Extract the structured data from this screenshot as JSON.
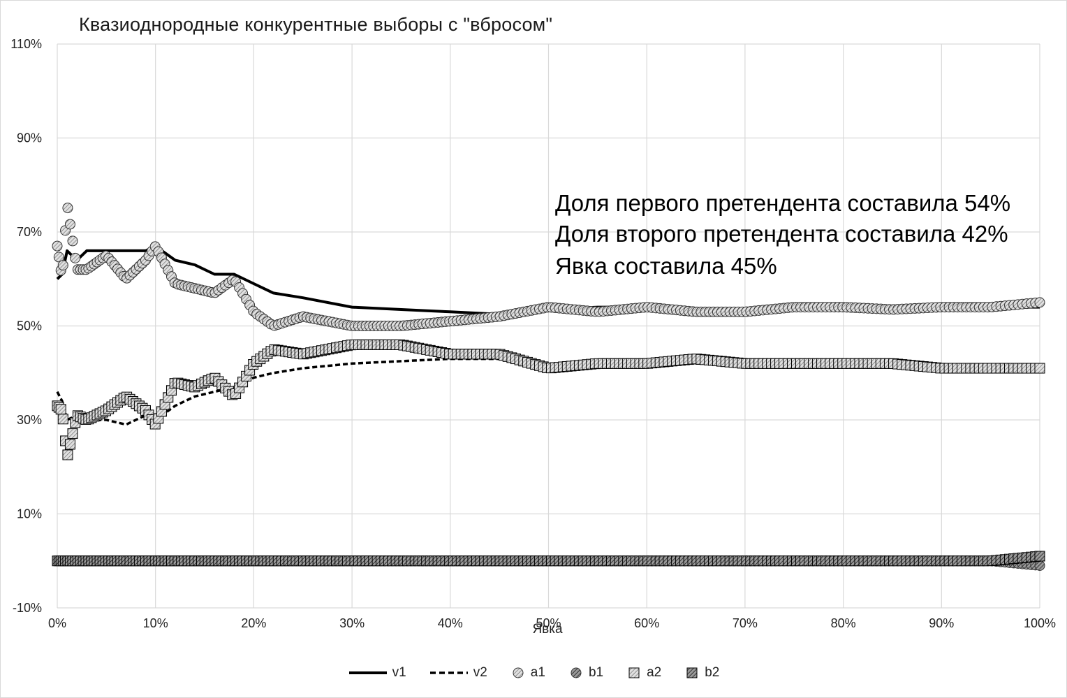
{
  "chart_data": {
    "type": "line",
    "title": "Квазиоднородные  конкурентные выборы с \"вбросом\"",
    "xlabel": "Явка",
    "ylabel": "",
    "xlim": [
      0,
      1
    ],
    "ylim": [
      -0.1,
      1.1
    ],
    "x_ticks": [
      "0%",
      "10%",
      "20%",
      "30%",
      "40%",
      "50%",
      "60%",
      "70%",
      "80%",
      "90%",
      "100%"
    ],
    "y_ticks": [
      "-10%",
      "10%",
      "30%",
      "50%",
      "70%",
      "90%",
      "110%"
    ],
    "grid": "vertical-and-horizontal",
    "legend_position": "bottom",
    "annotations": [
      "Доля первого претендента составила 54%",
      "Доля второго претендента составила 42%",
      "Явка составила 45%"
    ],
    "x": [
      0.0,
      0.005,
      0.01,
      0.02,
      0.03,
      0.05,
      0.07,
      0.09,
      0.1,
      0.12,
      0.14,
      0.16,
      0.18,
      0.2,
      0.22,
      0.25,
      0.3,
      0.35,
      0.4,
      0.45,
      0.5,
      0.55,
      0.6,
      0.65,
      0.7,
      0.75,
      0.8,
      0.85,
      0.9,
      0.95,
      1.0
    ],
    "series": [
      {
        "name": "v1",
        "style": "solid",
        "values": [
          0.6,
          0.61,
          0.66,
          0.64,
          0.66,
          0.66,
          0.66,
          0.66,
          0.67,
          0.64,
          0.63,
          0.61,
          0.61,
          0.59,
          0.57,
          0.56,
          0.54,
          0.535,
          0.53,
          0.525,
          0.535,
          0.54,
          0.54,
          0.535,
          0.535,
          0.535,
          0.54,
          0.54,
          0.54,
          0.54,
          0.54
        ]
      },
      {
        "name": "v2",
        "style": "dashed",
        "values": [
          0.36,
          0.34,
          0.3,
          0.31,
          0.3,
          0.3,
          0.29,
          0.31,
          0.3,
          0.33,
          0.35,
          0.36,
          0.37,
          0.39,
          0.4,
          0.41,
          0.42,
          0.425,
          0.43,
          0.43,
          0.42,
          0.42,
          0.42,
          0.42,
          0.42,
          0.42,
          0.42,
          0.42,
          0.415,
          0.415,
          0.415
        ]
      },
      {
        "name": "a1",
        "style": "marker-circle-hatched-light",
        "values": [
          0.67,
          0.6,
          0.76,
          0.62,
          0.62,
          0.65,
          0.6,
          0.64,
          0.67,
          0.59,
          0.58,
          0.57,
          0.6,
          0.53,
          0.5,
          0.52,
          0.5,
          0.5,
          0.51,
          0.52,
          0.54,
          0.53,
          0.54,
          0.53,
          0.53,
          0.54,
          0.54,
          0.535,
          0.54,
          0.54,
          0.55
        ]
      },
      {
        "name": "b1",
        "style": "marker-circle-hatched-dark",
        "values": [
          0.0,
          0.0,
          0.0,
          0.0,
          0.0,
          0.0,
          0.0,
          0.0,
          0.0,
          0.0,
          0.0,
          0.0,
          0.0,
          0.0,
          0.0,
          0.0,
          0.0,
          0.0,
          0.0,
          0.0,
          0.0,
          0.0,
          0.0,
          0.0,
          0.0,
          0.0,
          0.0,
          0.0,
          0.0,
          0.0,
          -0.01
        ]
      },
      {
        "name": "a2",
        "style": "marker-square-hatched-light",
        "values": [
          0.33,
          0.32,
          0.22,
          0.31,
          0.3,
          0.32,
          0.35,
          0.32,
          0.29,
          0.38,
          0.37,
          0.39,
          0.35,
          0.42,
          0.45,
          0.44,
          0.46,
          0.46,
          0.44,
          0.44,
          0.41,
          0.42,
          0.42,
          0.43,
          0.42,
          0.42,
          0.42,
          0.42,
          0.41,
          0.41,
          0.41
        ]
      },
      {
        "name": "b2",
        "style": "marker-square-hatched-dark",
        "values": [
          0.0,
          0.0,
          0.0,
          0.0,
          0.0,
          0.0,
          0.0,
          0.0,
          0.0,
          0.0,
          0.0,
          0.0,
          0.0,
          0.0,
          0.0,
          0.0,
          0.0,
          0.0,
          0.0,
          0.0,
          0.0,
          0.0,
          0.0,
          0.0,
          0.0,
          0.0,
          0.0,
          0.0,
          0.0,
          0.0,
          0.01
        ]
      }
    ]
  }
}
